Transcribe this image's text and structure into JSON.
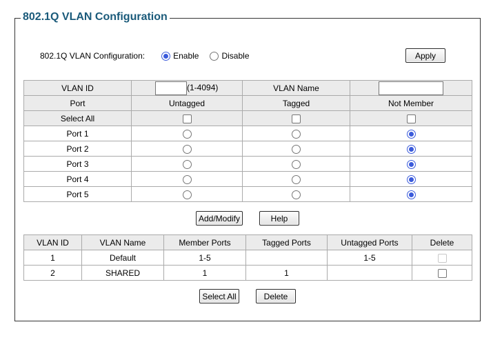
{
  "title": "802.1Q VLAN Configuration",
  "mode": {
    "label": "802.1Q VLAN Configuration:",
    "enable_label": "Enable",
    "disable_label": "Disable",
    "selected": "Enable",
    "apply_label": "Apply"
  },
  "config": {
    "vlan_id_label": "VLAN ID",
    "vlan_id_value": "",
    "vlan_id_range": "(1-4094)",
    "vlan_name_label": "VLAN Name",
    "vlan_name_value": "",
    "port_header": "Port",
    "untagged_header": "Untagged",
    "tagged_header": "Tagged",
    "not_member_header": "Not Member",
    "select_all_label": "Select All",
    "ports": [
      {
        "name": "Port 1",
        "selection": "Not Member"
      },
      {
        "name": "Port 2",
        "selection": "Not Member"
      },
      {
        "name": "Port 3",
        "selection": "Not Member"
      },
      {
        "name": "Port 4",
        "selection": "Not Member"
      },
      {
        "name": "Port 5",
        "selection": "Not Member"
      }
    ],
    "add_modify_label": "Add/Modify",
    "help_label": "Help"
  },
  "vlan_table": {
    "columns": [
      "VLAN ID",
      "VLAN Name",
      "Member Ports",
      "Tagged Ports",
      "Untagged Ports",
      "Delete"
    ],
    "rows": [
      {
        "id": "1",
        "name": "Default",
        "member": "1-5",
        "tagged": "",
        "untagged": "1-5",
        "delete_enabled": false
      },
      {
        "id": "2",
        "name": "SHARED",
        "member": "1",
        "tagged": "1",
        "untagged": "",
        "delete_enabled": true
      }
    ],
    "select_all_label": "Select All",
    "delete_label": "Delete"
  },
  "colors": {
    "title": "#1a5a7a",
    "header_bg": "#ebebeb",
    "radio_accent": "#3b5bdb"
  }
}
